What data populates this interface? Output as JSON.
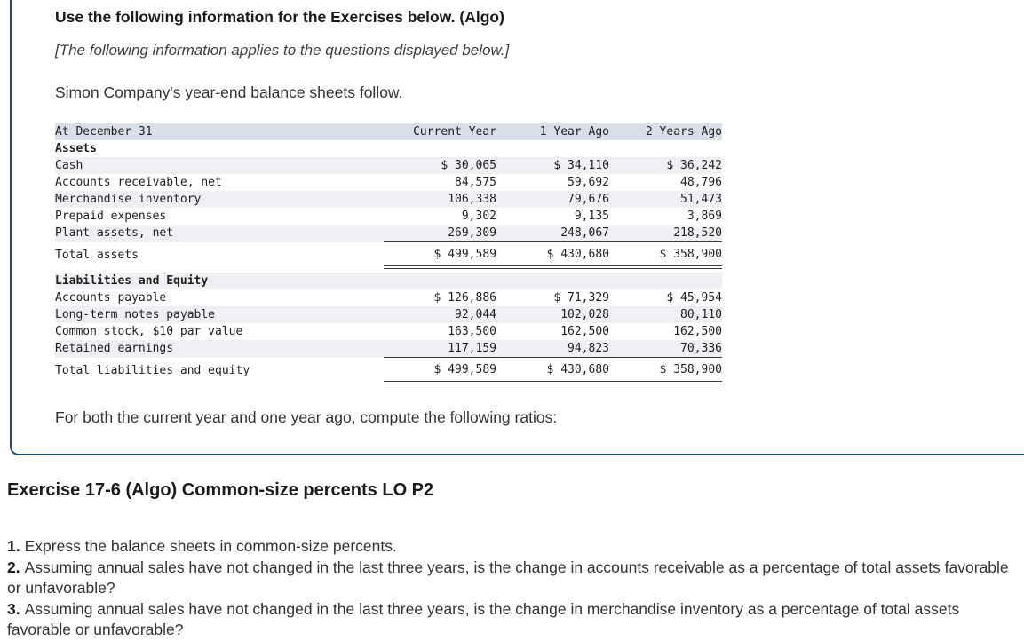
{
  "box": {
    "title": "Use the following information for the Exercises below. (Algo)",
    "note": "[The following information applies to the questions displayed below.]",
    "intro": "Simon Company's year-end balance sheets follow.",
    "footer": "For both the current year and one year ago, compute the following ratios:"
  },
  "table": {
    "columns": [
      "At December 31",
      "Current Year",
      "1 Year Ago",
      "2 Years Ago"
    ],
    "rows": [
      {
        "label": "Assets",
        "values": [
          "",
          "",
          ""
        ]
      },
      {
        "label": "Cash",
        "values": [
          "$ 30,065",
          "$ 34,110",
          "$ 36,242"
        ]
      },
      {
        "label": "Accounts receivable, net",
        "values": [
          "84,575",
          "59,692",
          "48,796"
        ]
      },
      {
        "label": "Merchandise inventory",
        "values": [
          "106,338",
          "79,676",
          "51,473"
        ]
      },
      {
        "label": "Prepaid expenses",
        "values": [
          "9,302",
          "9,135",
          "3,869"
        ]
      },
      {
        "label": "Plant assets, net",
        "values": [
          "269,309",
          "248,067",
          "218,520"
        ]
      },
      {
        "label": "Total assets",
        "values": [
          "$ 499,589",
          "$ 430,680",
          "$ 358,900"
        ]
      },
      {
        "label": "Liabilities and Equity",
        "values": [
          "",
          "",
          ""
        ]
      },
      {
        "label": "Accounts payable",
        "values": [
          "$ 126,886",
          "$ 71,329",
          "$ 45,954"
        ]
      },
      {
        "label": "Long-term notes payable",
        "values": [
          "92,044",
          "102,028",
          "80,110"
        ]
      },
      {
        "label": "Common stock, $10 par value",
        "values": [
          "163,500",
          "162,500",
          "162,500"
        ]
      },
      {
        "label": "Retained earnings",
        "values": [
          "117,159",
          "94,823",
          "70,336"
        ]
      },
      {
        "label": "Total liabilities and equity",
        "values": [
          "$ 499,589",
          "$ 430,680",
          "$ 358,900"
        ]
      }
    ]
  },
  "exercise": {
    "title": "Exercise 17-6 (Algo) Common-size percents LO P2"
  },
  "questions": [
    {
      "num": "1.",
      "text": "Express the balance sheets in common-size percents."
    },
    {
      "num": "2.",
      "text": "Assuming annual sales have not changed in the last three years, is the change in accounts receivable as a percentage of total assets favorable or unfavorable?"
    },
    {
      "num": "3.",
      "text": "Assuming annual sales have not changed in the last three years, is the change in merchandise inventory as a percentage of total assets favorable or unfavorable?"
    }
  ],
  "colors": {
    "panel_border": "#1e4a76",
    "table_header_bg": "#d8dfe8",
    "table_alt_row_bg": "#eef0f4"
  }
}
